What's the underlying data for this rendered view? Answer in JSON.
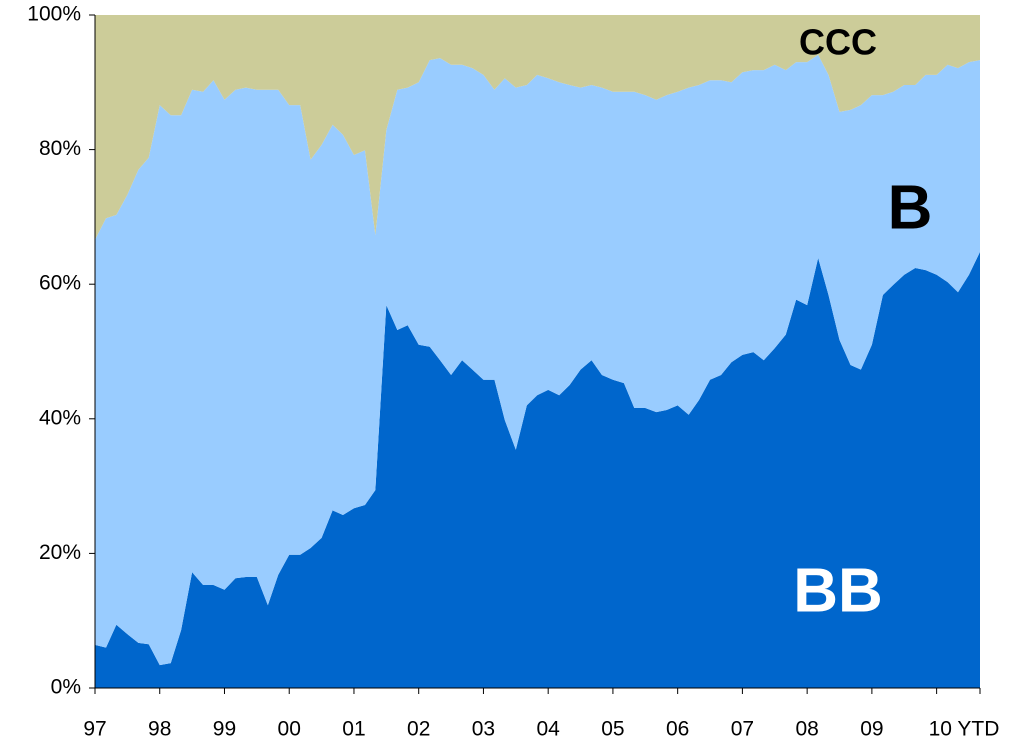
{
  "chart_data": {
    "type": "stacked_area",
    "x": [
      1997,
      1997.17,
      1997.33,
      1997.5,
      1997.67,
      1997.83,
      1998,
      1998.17,
      1998.33,
      1998.5,
      1998.67,
      1998.83,
      1999,
      1999.17,
      1999.33,
      1999.5,
      1999.67,
      1999.83,
      2000,
      2000.17,
      2000.33,
      2000.5,
      2000.67,
      2000.83,
      2001,
      2001.17,
      2001.33,
      2001.5,
      2001.67,
      2001.83,
      2002,
      2002.17,
      2002.33,
      2002.5,
      2002.67,
      2002.83,
      2003,
      2003.17,
      2003.33,
      2003.5,
      2003.67,
      2003.83,
      2004,
      2004.17,
      2004.33,
      2004.5,
      2004.67,
      2004.83,
      2005,
      2005.17,
      2005.33,
      2005.5,
      2005.67,
      2005.83,
      2006,
      2006.17,
      2006.33,
      2006.5,
      2006.67,
      2006.83,
      2007,
      2007.17,
      2007.33,
      2007.5,
      2007.67,
      2007.83,
      2008,
      2008.17,
      2008.33,
      2008.5,
      2008.67,
      2008.83,
      2009,
      2009.17,
      2009.33,
      2009.5,
      2009.67,
      2009.83,
      2010,
      2010.17,
      2010.33,
      2010.5,
      2010.67
    ],
    "series": [
      {
        "name": "BB",
        "color": "#0066cc",
        "values": [
          6.4,
          6.0,
          9.4,
          8.0,
          6.7,
          6.5,
          3.4,
          3.7,
          8.6,
          17.2,
          15.3,
          15.3,
          14.6,
          16.3,
          16.5,
          16.5,
          12.3,
          16.8,
          19.8,
          19.8,
          20.8,
          22.3,
          26.4,
          25.7,
          26.7,
          27.2,
          29.4,
          56.9,
          53.2,
          53.9,
          51.0,
          50.7,
          48.7,
          46.5,
          48.7,
          47.3,
          45.8,
          45.8,
          39.8,
          35.4,
          42.0,
          43.5,
          44.3,
          43.5,
          45.0,
          47.3,
          48.7,
          46.5,
          45.8,
          45.3,
          41.6,
          41.6,
          41.0,
          41.3,
          42.0,
          40.6,
          42.8,
          45.8,
          46.5,
          48.4,
          49.5,
          49.9,
          48.7,
          50.5,
          52.5,
          57.7,
          56.9,
          63.9,
          58.4,
          51.7,
          48.0,
          47.3,
          51.0,
          58.4,
          59.9,
          61.4,
          62.4,
          62.1,
          61.4,
          60.3,
          58.8,
          61.4,
          64.8
        ]
      },
      {
        "name": "B",
        "color": "#99ccff",
        "values": [
          60.2,
          63.8,
          60.9,
          65.3,
          70.3,
          72.3,
          83.2,
          81.4,
          76.5,
          71.7,
          73.3,
          75.0,
          72.8,
          72.6,
          72.7,
          72.4,
          76.6,
          72.1,
          66.8,
          66.8,
          57.7,
          58.4,
          57.3,
          56.5,
          52.5,
          52.7,
          37.9,
          26.0,
          35.7,
          35.3,
          39.0,
          42.6,
          44.9,
          46.1,
          43.9,
          44.8,
          45.3,
          43.1,
          50.8,
          53.8,
          47.6,
          47.6,
          46.3,
          46.5,
          44.6,
          41.9,
          40.9,
          42.7,
          42.8,
          43.3,
          47.0,
          46.5,
          46.4,
          46.8,
          46.6,
          48.6,
          46.8,
          44.5,
          43.8,
          41.6,
          42.0,
          41.9,
          43.1,
          42.1,
          39.3,
          35.3,
          36.1,
          30.2,
          32.7,
          33.9,
          37.9,
          39.3,
          37.1,
          29.7,
          28.7,
          28.2,
          27.2,
          29.0,
          29.7,
          32.3,
          33.3,
          31.6,
          28.5
        ]
      },
      {
        "name": "CCC",
        "color": "#cccc99",
        "values": [
          33.4,
          30.2,
          29.7,
          26.7,
          23.0,
          21.2,
          13.4,
          14.9,
          14.9,
          11.1,
          11.4,
          9.7,
          12.6,
          11.1,
          10.8,
          11.1,
          11.1,
          11.1,
          13.4,
          13.4,
          21.5,
          19.3,
          16.3,
          17.8,
          20.8,
          20.1,
          32.7,
          17.1,
          11.1,
          10.8,
          10.0,
          6.7,
          6.4,
          7.4,
          7.4,
          7.9,
          8.9,
          11.1,
          9.4,
          10.8,
          10.4,
          8.9,
          9.4,
          10.0,
          10.4,
          10.8,
          10.4,
          10.8,
          11.4,
          11.4,
          11.4,
          11.9,
          12.6,
          11.9,
          11.4,
          10.8,
          10.4,
          9.7,
          9.7,
          10.0,
          8.5,
          8.2,
          8.2,
          7.4,
          8.2,
          7.0,
          7.0,
          5.9,
          8.9,
          14.4,
          14.1,
          13.4,
          11.9,
          11.9,
          11.4,
          10.4,
          10.4,
          8.9,
          8.9,
          7.4,
          7.9,
          7.0,
          6.7
        ]
      }
    ],
    "xlim": [
      1997,
      2010.67
    ],
    "xticks": [
      {
        "value": 1997,
        "label": "97"
      },
      {
        "value": 1998,
        "label": "98"
      },
      {
        "value": 1999,
        "label": "99"
      },
      {
        "value": 2000,
        "label": "00"
      },
      {
        "value": 2001,
        "label": "01"
      },
      {
        "value": 2002,
        "label": "02"
      },
      {
        "value": 2003,
        "label": "03"
      },
      {
        "value": 2004,
        "label": "04"
      },
      {
        "value": 2005,
        "label": "05"
      },
      {
        "value": 2006,
        "label": "06"
      },
      {
        "value": 2007,
        "label": "07"
      },
      {
        "value": 2008,
        "label": "08"
      },
      {
        "value": 2009,
        "label": "09"
      },
      {
        "value": 2010,
        "label": "10 YTD"
      }
    ],
    "ylim": [
      0,
      100
    ],
    "yticks": [
      {
        "value": 0,
        "label": "0%"
      },
      {
        "value": 20,
        "label": "20%"
      },
      {
        "value": 40,
        "label": "40%"
      },
      {
        "value": 60,
        "label": "60%"
      },
      {
        "value": 80,
        "label": "80%"
      },
      {
        "value": 100,
        "label": "100%"
      }
    ],
    "grid": false
  }
}
